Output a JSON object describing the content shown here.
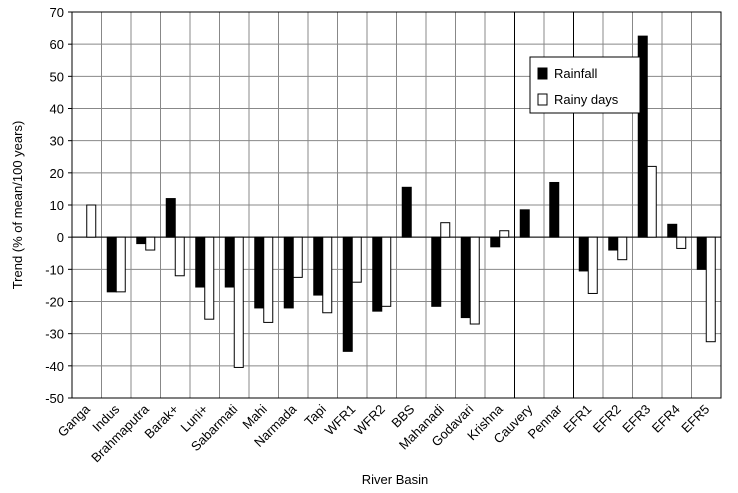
{
  "chart_data": {
    "type": "bar",
    "x_label": "River Basin",
    "y_label": "Trend (% of mean/100 years)",
    "categories": [
      "Ganga",
      "Indus",
      "Brahmaputra",
      "Barak+",
      "Luni+",
      "Sabarmati",
      "Mahi",
      "Narmada",
      "Tapi",
      "WFR1",
      "WFR2",
      "BBS",
      "Mahanadi",
      "Godavari",
      "Krishna",
      "Cauvery",
      "Pennar",
      "EFR1",
      "EFR2",
      "EFR3",
      "EFR4",
      "EFR5"
    ],
    "series": [
      {
        "name": "Rainfall",
        "color": "#000000",
        "values": [
          0,
          -17,
          -2,
          12,
          -15.5,
          -15.5,
          -22,
          -22,
          -18,
          -35.5,
          -23,
          15.5,
          -21.5,
          -25,
          -3,
          8.5,
          17,
          -10.5,
          -4,
          62.5,
          4,
          -10
        ]
      },
      {
        "name": "Rainy days",
        "color": "#ffffff",
        "values": [
          10,
          -17,
          -4,
          -12,
          -25.5,
          -40.5,
          -26.5,
          -12.5,
          -23.5,
          -14,
          -21.5,
          0,
          4.5,
          -27,
          2,
          0,
          0,
          -17.5,
          -7,
          22,
          -3.5,
          -32.5
        ]
      }
    ],
    "ylim": [
      -50,
      70
    ],
    "yticks": [
      -50,
      -40,
      -30,
      -20,
      -10,
      0,
      10,
      20,
      30,
      40,
      50,
      60,
      70
    ],
    "grid": true,
    "legend": "top-right"
  }
}
